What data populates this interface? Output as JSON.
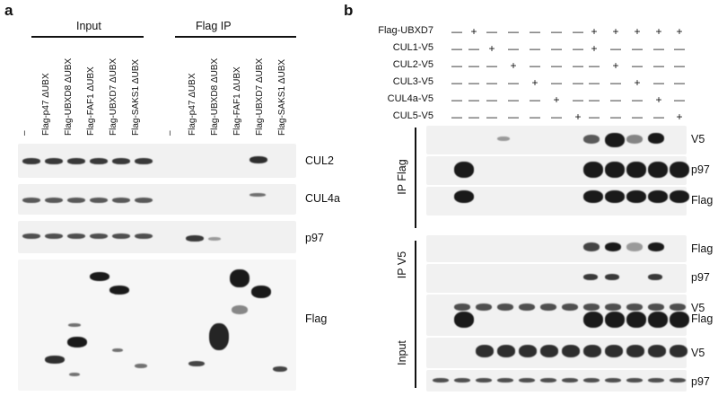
{
  "panel_a": {
    "letter": "a",
    "group_input": "Input",
    "group_flag_ip": "Flag IP",
    "lanes": [
      "–",
      "Flag-p47 ΔUBX",
      "Flag-UBXD8 ΔUBX",
      "Flag-FAF1 ΔUBX",
      "Flag-UBXD7 ΔUBX",
      "Flag-SAKS1 ΔUBX",
      "–",
      "Flag-p47 ΔUBX",
      "Flag-UBXD8 ΔUBX",
      "Flag-FAF1 ΔUBX",
      "Flag-UBXD7 ΔUBX",
      "Flag-SAKS1 ΔUBX"
    ],
    "blots": [
      "CUL2",
      "CUL4a",
      "p97",
      "Flag"
    ]
  },
  "panel_b": {
    "letter": "b",
    "rows": [
      {
        "name": "Flag-UBXD7",
        "signs": [
          "—",
          "+",
          "—",
          "—",
          "—",
          "—",
          "—",
          "+",
          "+",
          "+",
          "+",
          "+"
        ]
      },
      {
        "name": "CUL1-V5",
        "signs": [
          "—",
          "—",
          "+",
          "—",
          "—",
          "—",
          "—",
          "+",
          "—",
          "—",
          "—",
          "—"
        ]
      },
      {
        "name": "CUL2-V5",
        "signs": [
          "—",
          "—",
          "—",
          "+",
          "—",
          "—",
          "—",
          "—",
          "+",
          "—",
          "—",
          "—"
        ]
      },
      {
        "name": "CUL3-V5",
        "signs": [
          "—",
          "—",
          "—",
          "—",
          "+",
          "—",
          "—",
          "—",
          "—",
          "+",
          "—",
          "—"
        ]
      },
      {
        "name": "CUL4a-V5",
        "signs": [
          "—",
          "—",
          "—",
          "—",
          "—",
          "+",
          "—",
          "—",
          "—",
          "—",
          "+",
          "—"
        ]
      },
      {
        "name": "CUL5-V5",
        "signs": [
          "—",
          "—",
          "—",
          "—",
          "—",
          "—",
          "+",
          "—",
          "—",
          "—",
          "—",
          "+"
        ]
      }
    ],
    "section_ip_flag": "IP Flag",
    "section_ip_v5": "IP V5",
    "section_input": "Input",
    "blots": [
      "V5",
      "p97",
      "Flag",
      "Flag",
      "p97",
      "V5",
      "Flag",
      "V5",
      "p97"
    ]
  }
}
